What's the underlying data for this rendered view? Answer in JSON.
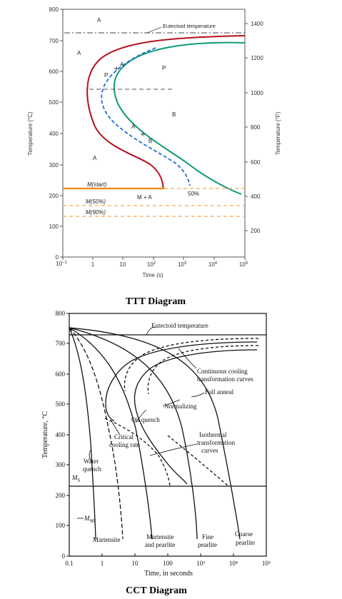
{
  "colors": {
    "red": "#b5121b",
    "green": "#0f9a78",
    "blue": "#1f6fd6",
    "orange": "#f28c28",
    "orange_dashed": "#f6b870",
    "axis": "#555555",
    "black": "#111111"
  },
  "ttt": {
    "caption": "TTT Diagram",
    "ylabel_left": "Temperature (°C)",
    "ylabel_right": "Temperature (°F)",
    "xlabel": "Time (s)",
    "yticks_left": [
      "0",
      "100",
      "200",
      "300",
      "400",
      "500",
      "600",
      "700",
      "800"
    ],
    "yticks_right": [
      "200",
      "400",
      "600",
      "800",
      "1000",
      "1200",
      "1400"
    ],
    "xticks": [
      {
        "base": "10",
        "exp": "−1"
      },
      {
        "base": "1",
        "exp": ""
      },
      {
        "base": "10",
        "exp": ""
      },
      {
        "base": "10",
        "exp": "2"
      },
      {
        "base": "10",
        "exp": "3"
      },
      {
        "base": "10",
        "exp": "4"
      },
      {
        "base": "10",
        "exp": "5"
      }
    ],
    "labels": {
      "eutectoid": "Eutectoid temperature",
      "a1": "A",
      "a2": "A",
      "a3": "A",
      "a_curve": "A",
      "a_lower": "A",
      "b": "B",
      "b_path": "B",
      "p": "P",
      "p_path": "P",
      "m_start": "M(start)",
      "m50": "M(50%)",
      "m90": "M(90%)",
      "m_plus_a": "M + A",
      "pct50": "50%"
    }
  },
  "cct": {
    "caption": "CCT Diagram",
    "ylabel": "Temperature, °C",
    "xlabel": "Time, in seconds",
    "yticks": [
      "0",
      "100",
      "200",
      "300",
      "400",
      "500",
      "600",
      "700",
      "800"
    ],
    "xticks": [
      "0.1",
      "1",
      "10",
      "100",
      "10³",
      "10⁴",
      "10⁵"
    ],
    "labels": {
      "eutectoid": "Eutectoid temperature",
      "ccc1": "Continuous cooling",
      "ccc2": "transformation curves",
      "full_anneal": "Full anneal",
      "normalizing": "Normalizing",
      "oil_quench": "Oil quench",
      "critical1": "Critical",
      "critical2": "cooling rate",
      "iso1": "Isothermal",
      "iso2": "transformation",
      "iso3": "curves",
      "water1": "Water",
      "water2": "quench",
      "ms": "M",
      "ms_sub": "S",
      "m90": "M",
      "m90_sub": "90",
      "martensite": "Martensite",
      "mp1": "Martensite",
      "mp2": "and pearlite",
      "fine1": "Fine",
      "fine2": "pearlite",
      "coarse1": "Coarse",
      "coarse2": "pearlite"
    }
  }
}
